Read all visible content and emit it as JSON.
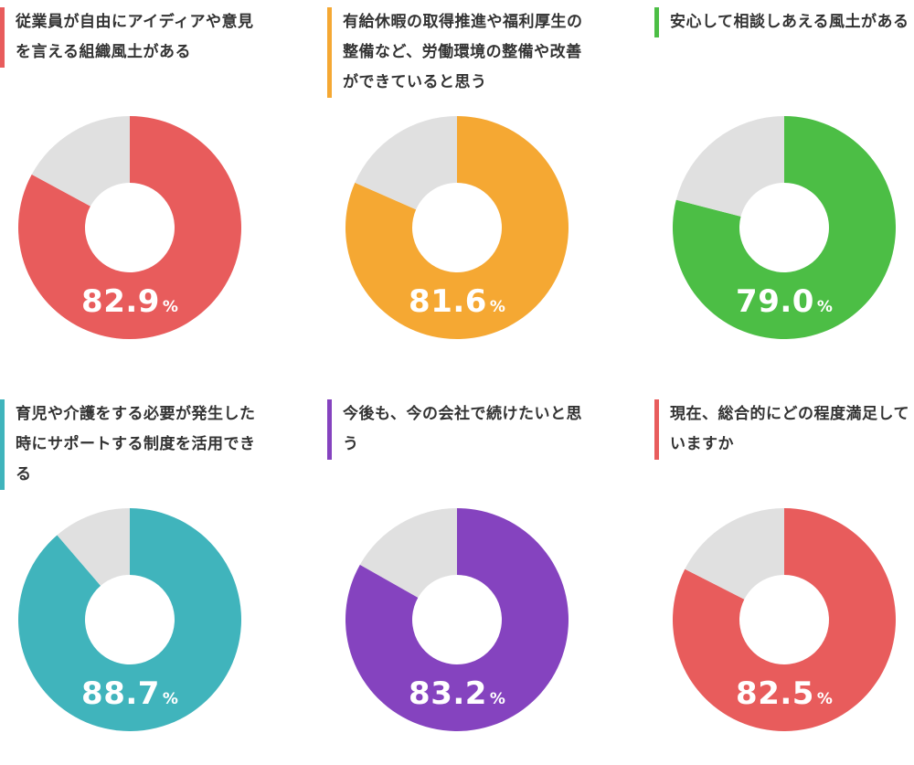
{
  "chart_data": [
    {
      "type": "pie",
      "question": "従業員が自由にアイディアや意見を言える組織風土がある",
      "value": 82.9,
      "value_label": "82.9",
      "unit": "%",
      "color": "#e85c5c",
      "rest_color": "#e0e0e0"
    },
    {
      "type": "pie",
      "question": "有給休暇の取得推進や福利厚生の整備など、労働環境の整備や改善ができていると思う",
      "value": 81.6,
      "value_label": "81.6",
      "unit": "%",
      "color": "#f5a833",
      "rest_color": "#e0e0e0"
    },
    {
      "type": "pie",
      "question": "安心して相談しあえる風土がある",
      "value": 79.0,
      "value_label": "79.0",
      "unit": "%",
      "color": "#4cbe45",
      "rest_color": "#e0e0e0"
    },
    {
      "type": "pie",
      "question": "育児や介護をする必要が発生した時にサポートする制度を活用できる",
      "value": 88.7,
      "value_label": "88.7",
      "unit": "%",
      "color": "#40b4bc",
      "rest_color": "#e0e0e0"
    },
    {
      "type": "pie",
      "question": "今後も、今の会社で続けたいと思う",
      "value": 83.2,
      "value_label": "83.2",
      "unit": "%",
      "color": "#8543bf",
      "rest_color": "#e0e0e0"
    },
    {
      "type": "pie",
      "question": "現在、総合的にどの程度満足していますか",
      "value": 82.5,
      "value_label": "82.5",
      "unit": "%",
      "color": "#e85c5c",
      "rest_color": "#e0e0e0"
    }
  ]
}
